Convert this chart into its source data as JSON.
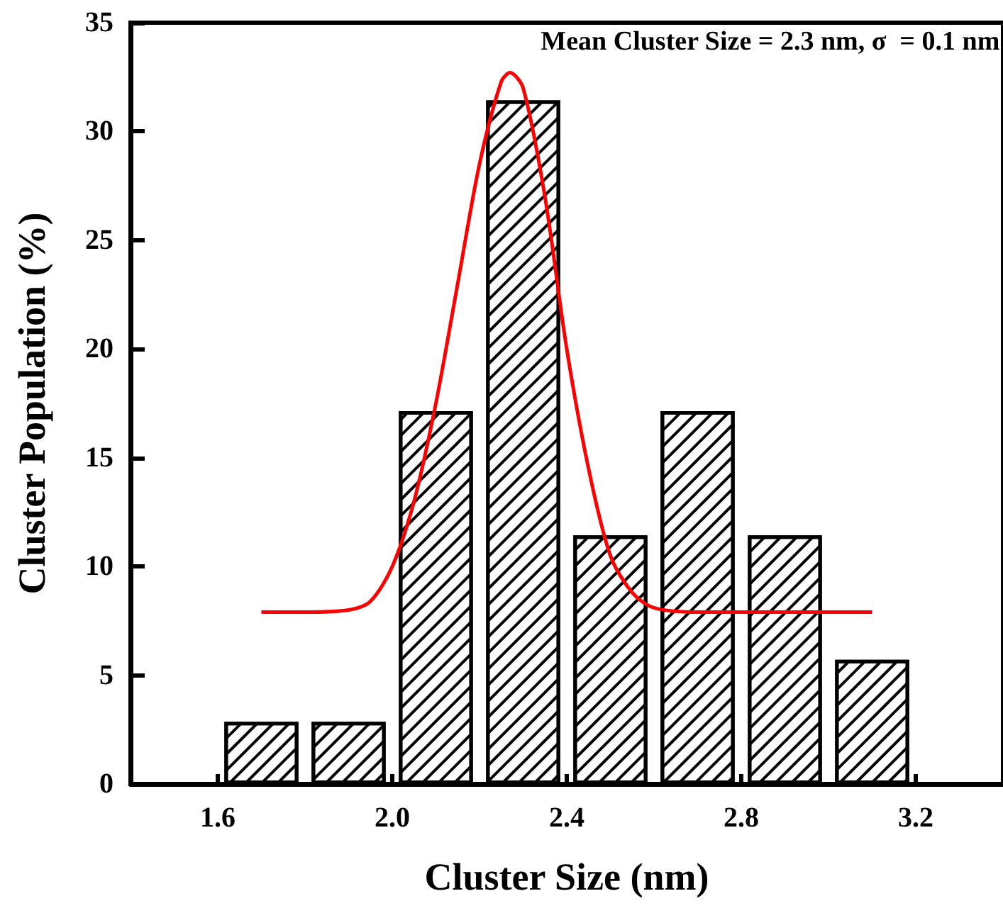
{
  "chart_data": {
    "type": "histogram",
    "xlabel": "Cluster Size (nm)",
    "ylabel": "Cluster Population (%)",
    "annotations": [
      "Mean Cluster Size = 2.3 nm, σ  = 0.1 nm"
    ],
    "bins": [
      1.6,
      1.8,
      2.0,
      2.2,
      2.4,
      2.6,
      2.8,
      3.0,
      3.2
    ],
    "values": [
      2.86,
      2.86,
      17.14,
      31.43,
      11.43,
      17.14,
      11.43,
      5.71
    ],
    "color": "#ffffff",
    "series": [
      {
        "type": "line",
        "color": "#ff0000",
        "x": [
          1.7,
          1.8,
          1.9,
          1.95,
          2.0,
          2.05,
          2.1,
          2.15,
          2.2,
          2.25,
          2.27,
          2.3,
          2.35,
          2.4,
          2.45,
          2.5,
          2.55,
          2.6,
          2.7,
          2.8,
          3.1
        ],
        "values": [
          7.9,
          7.9,
          8.0,
          8.4,
          10.0,
          13.0,
          17.5,
          23.0,
          28.5,
          32.3,
          32.7,
          32.0,
          27.0,
          20.0,
          14.5,
          10.5,
          8.8,
          8.1,
          7.9,
          7.9,
          7.9
        ]
      }
    ],
    "xlim": [
      1.4,
      3.4
    ],
    "xticks": [
      {
        "value": 1.6,
        "label": "1.6"
      },
      {
        "value": 2,
        "label": "2.0"
      },
      {
        "value": 2.4,
        "label": "2.4"
      },
      {
        "value": 2.8,
        "label": "2.8"
      },
      {
        "value": 3.2,
        "label": "3.2"
      }
    ],
    "ylim": [
      0,
      35
    ],
    "yticks": [
      0,
      5,
      10,
      15,
      20,
      25,
      30,
      35
    ],
    "grid": false,
    "marker": "none",
    "line_style": "solid"
  }
}
